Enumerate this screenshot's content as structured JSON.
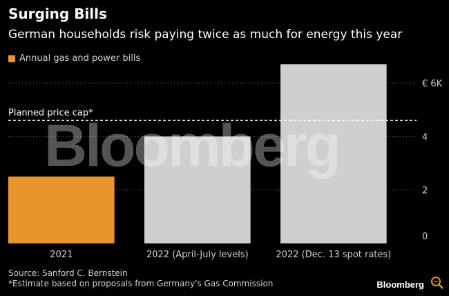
{
  "title": "Surging Bills",
  "subtitle": "German households risk paying twice as much for energy this year",
  "legend": {
    "label": "Annual gas and power bills",
    "color": "#e8952c"
  },
  "watermark": "Bloomberg",
  "source": "Source: Sanford C. Bernstein",
  "footnote": "*Estimate based on proposals from Germany's Gas Commission",
  "logo": "Bloomberg",
  "logo_icon": "magnifier-icon",
  "colors": {
    "highlight": "#e8952c",
    "bar": "#cfcfcf",
    "background": "#000000",
    "reference": "#ffffff",
    "grid": "#6e6e6e"
  },
  "chart_data": {
    "type": "bar",
    "title": "Surging Bills",
    "subtitle": "German households risk paying twice as much for energy this year",
    "categories": [
      "2021",
      "2022 (April-July levels)",
      "2022 (Dec. 13 spot rates)"
    ],
    "series": [
      {
        "name": "Annual gas and power bills",
        "values": [
          2.5,
          4.0,
          6.7
        ]
      }
    ],
    "ylim": [
      0,
      6.7
    ],
    "yticks": [
      0,
      2,
      4,
      6
    ],
    "ytick_labels": [
      "0",
      "2",
      "4",
      "€ 6K"
    ],
    "y_axis_side": "right",
    "grid": true,
    "reference_line": {
      "label": "Planned price cap*",
      "value": 4.6,
      "style": "dashed"
    },
    "legend_position": "top-left"
  }
}
